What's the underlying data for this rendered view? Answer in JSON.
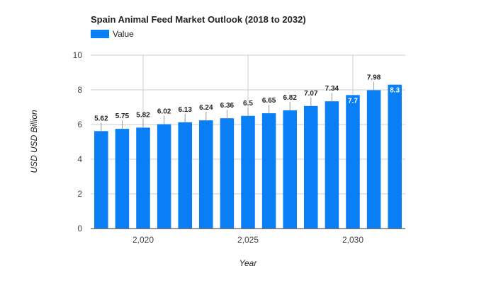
{
  "colors": {
    "bar": "#0a7ef5",
    "grid": "#cccccc",
    "axis": "#333333",
    "text": "#222222"
  },
  "chart_data": {
    "type": "bar",
    "title": "Spain Animal Feed Market Outlook (2018 to 2032)",
    "xlabel": "Year",
    "ylabel": "USD USD Billion",
    "legend": {
      "position": "top-left",
      "entries": [
        "Value"
      ]
    },
    "grid": true,
    "x": [
      2018,
      2019,
      2020,
      2021,
      2022,
      2023,
      2024,
      2025,
      2026,
      2027,
      2028,
      2029,
      2030,
      2031,
      2032
    ],
    "series": [
      {
        "name": "Value",
        "values": [
          5.62,
          5.75,
          5.82,
          6.02,
          6.13,
          6.24,
          6.36,
          6.5,
          6.65,
          6.82,
          7.07,
          7.34,
          7.7,
          7.98,
          8.3
        ]
      }
    ],
    "data_labels": [
      "5.62",
      "5.75",
      "5.82",
      "6.02",
      "6.13",
      "6.24",
      "6.36",
      "6.5",
      "6.65",
      "6.82",
      "7.07",
      "7.34",
      "7.7",
      "7.98",
      "8.3"
    ],
    "ylim": [
      0,
      10
    ],
    "yticks": [
      0,
      2,
      4,
      6,
      8,
      10
    ],
    "ytick_labels": [
      "0",
      "2",
      "4",
      "6",
      "8",
      "10"
    ],
    "xticks": [
      2020,
      2025,
      2030
    ],
    "xtick_labels": [
      "2,020",
      "2,025",
      "2,030"
    ]
  }
}
